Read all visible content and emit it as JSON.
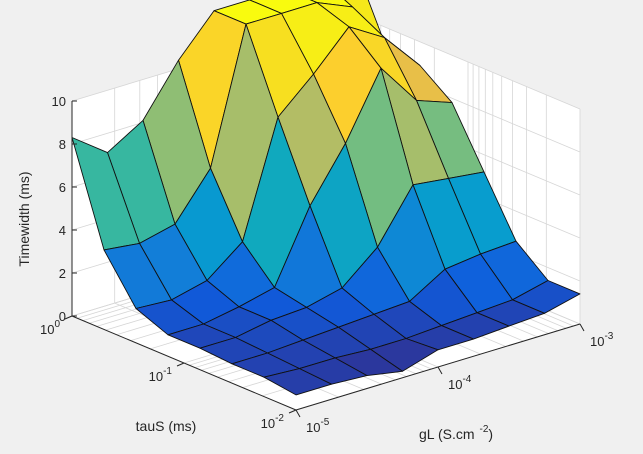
{
  "window": {
    "background": "#f0f0f0"
  },
  "chart_data": {
    "type": "surface",
    "colormap": "parula",
    "zlabel": "Timewidth (ms)",
    "xlabel": {
      "base": "gL (S.cm",
      "sup": "-2",
      "end": ")"
    },
    "ylabel": "tauS (ms)",
    "zlim": [
      0,
      10
    ],
    "z_ticks": [
      "0",
      "2",
      "4",
      "6",
      "8",
      "10"
    ],
    "x_ticks": [
      {
        "base": "10",
        "sup": "-5"
      },
      {
        "base": "10",
        "sup": "-4"
      },
      {
        "base": "10",
        "sup": "-3"
      }
    ],
    "y_ticks": [
      {
        "base": "10",
        "sup": "-2"
      },
      {
        "base": "10",
        "sup": "-1"
      },
      {
        "base": "10",
        "sup": "0"
      }
    ],
    "x_log_range": [
      -5,
      -3
    ],
    "y_log_range": [
      -2,
      0
    ],
    "grid": true,
    "clim": [
      0.3,
      12.2
    ],
    "z": [
      [
        8.3,
        7.1,
        8.1,
        10.4,
        12.2,
        12.2,
        12.2,
        12.2,
        12.2
      ],
      [
        3.7,
        3.5,
        3.9,
        6.0,
        12.2,
        12.2,
        12.2,
        11.5,
        8.9
      ],
      [
        1.6,
        1.5,
        1.9,
        3.2,
        8.5,
        10.0,
        11.7,
        10.7,
        8.9
      ],
      [
        1.0,
        1.0,
        1.3,
        1.7,
        5.0,
        7.4,
        10.4,
        8.4,
        7.8
      ],
      [
        1.0,
        1.0,
        1.3,
        1.4,
        1.8,
        3.2,
        5.6,
        5.4,
        5.2
      ],
      [
        0.9,
        0.9,
        1.0,
        1.1,
        1.2,
        1.3,
        2.3,
        2.5,
        2.6
      ],
      [
        0.9,
        0.8,
        0.8,
        0.7,
        0.7,
        0.8,
        0.9,
        1.0,
        1.4
      ],
      [
        0.7,
        0.7,
        0.6,
        0.3,
        0.8,
        0.8,
        0.9,
        1.0,
        1.4
      ]
    ]
  }
}
